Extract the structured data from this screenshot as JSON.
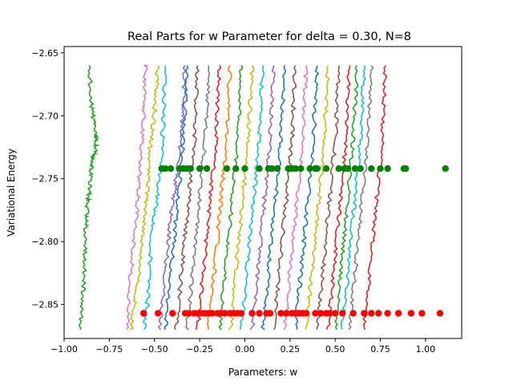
{
  "chart_data": {
    "type": "line",
    "title": "Real Parts for w Parameter for delta = 0.30, N=8",
    "xlabel": "Parameters: w",
    "ylabel": "Variational Energy",
    "xlim": [
      -1.0,
      1.2
    ],
    "ylim": [
      -2.877,
      -2.645
    ],
    "xticks": [
      -1.0,
      -0.75,
      -0.5,
      -0.25,
      0.0,
      0.25,
      0.5,
      0.75,
      1.0
    ],
    "xtick_labels": [
      "−1.00",
      "−0.75",
      "−0.50",
      "−0.25",
      "0.00",
      "0.25",
      "0.50",
      "0.75",
      "1.00"
    ],
    "yticks": [
      -2.65,
      -2.7,
      -2.75,
      -2.8,
      -2.85
    ],
    "ytick_labels": [
      "−2.65",
      "−2.70",
      "−2.75",
      "−2.80",
      "−2.85"
    ],
    "grid": false,
    "legend": "none",
    "palette": [
      "#1f77b4",
      "#ff7f0e",
      "#2ca02c",
      "#d62728",
      "#9467bd",
      "#8c564b",
      "#e377c2",
      "#7f7f7f",
      "#bcbd22",
      "#17becf"
    ],
    "lines": [
      {
        "color": "#2ca02c",
        "x": [
          -0.91,
          -0.9,
          -0.89,
          -0.885,
          -0.88,
          -0.875,
          -0.87,
          -0.86,
          -0.85,
          -0.84,
          -0.83,
          -0.82,
          -0.83,
          -0.84,
          -0.85,
          -0.86
        ],
        "y": [
          -2.87,
          -2.85,
          -2.83,
          -2.81,
          -2.79,
          -2.78,
          -2.77,
          -2.76,
          -2.745,
          -2.735,
          -2.73,
          -2.72,
          -2.715,
          -2.7,
          -2.69,
          -2.66
        ]
      },
      {
        "color": "#e377c2",
        "x": [
          -0.65,
          -0.64,
          -0.62,
          -0.6,
          -0.59,
          -0.58,
          -0.57,
          -0.56,
          -0.55,
          -0.55,
          -0.54
        ],
        "y": [
          -2.87,
          -2.84,
          -2.81,
          -2.78,
          -2.76,
          -2.74,
          -2.72,
          -2.7,
          -2.68,
          -2.66,
          -2.66
        ]
      },
      {
        "color": "#bcbd22",
        "x": [
          -0.63,
          -0.61,
          -0.59,
          -0.57,
          -0.55,
          -0.54,
          -0.53,
          -0.52,
          -0.5,
          -0.49,
          -0.48
        ],
        "y": [
          -2.87,
          -2.85,
          -2.83,
          -2.8,
          -2.78,
          -2.76,
          -2.74,
          -2.72,
          -2.7,
          -2.68,
          -2.66
        ]
      },
      {
        "color": "#17becf",
        "x": [
          -0.56,
          -0.54,
          -0.53,
          -0.52,
          -0.5,
          -0.48,
          -0.46,
          -0.45,
          -0.44
        ],
        "y": [
          -2.87,
          -2.85,
          -2.83,
          -2.8,
          -2.78,
          -2.76,
          -2.73,
          -2.7,
          -2.66
        ]
      },
      {
        "color": "#9467bd",
        "x": [
          -0.47,
          -0.45,
          -0.43,
          -0.41,
          -0.39,
          -0.37,
          -0.35,
          -0.34,
          -0.33
        ],
        "y": [
          -2.87,
          -2.84,
          -2.81,
          -2.78,
          -2.76,
          -2.74,
          -2.71,
          -2.69,
          -2.66
        ]
      },
      {
        "color": "#1f77b4",
        "x": [
          -0.44,
          -0.42,
          -0.4,
          -0.38,
          -0.36,
          -0.34,
          -0.33,
          -0.32
        ],
        "y": [
          -2.87,
          -2.84,
          -2.81,
          -2.78,
          -2.75,
          -2.72,
          -2.69,
          -2.66
        ]
      },
      {
        "color": "#8c564b",
        "x": [
          -0.38,
          -0.36,
          -0.34,
          -0.32,
          -0.3,
          -0.28,
          -0.27,
          -0.26
        ],
        "y": [
          -2.87,
          -2.84,
          -2.81,
          -2.78,
          -2.75,
          -2.72,
          -2.69,
          -2.66
        ]
      },
      {
        "color": "#7f7f7f",
        "x": [
          -0.32,
          -0.3,
          -0.28,
          -0.26,
          -0.24,
          -0.22,
          -0.21,
          -0.2
        ],
        "y": [
          -2.87,
          -2.84,
          -2.81,
          -2.78,
          -2.75,
          -2.72,
          -2.69,
          -2.66
        ]
      },
      {
        "color": "#d62728",
        "x": [
          -0.26,
          -0.24,
          -0.22,
          -0.2,
          -0.18,
          -0.16,
          -0.15,
          -0.14
        ],
        "y": [
          -2.87,
          -2.84,
          -2.81,
          -2.78,
          -2.75,
          -2.72,
          -2.69,
          -2.66
        ]
      },
      {
        "color": "#ff7f0e",
        "x": [
          -0.2,
          -0.18,
          -0.16,
          -0.14,
          -0.12,
          -0.1,
          -0.09,
          -0.08
        ],
        "y": [
          -2.87,
          -2.84,
          -2.81,
          -2.78,
          -2.75,
          -2.72,
          -2.69,
          -2.66
        ]
      },
      {
        "color": "#2ca02c",
        "x": [
          -0.14,
          -0.12,
          -0.1,
          -0.08,
          -0.06,
          -0.04,
          -0.03,
          -0.02
        ],
        "y": [
          -2.87,
          -2.84,
          -2.81,
          -2.78,
          -2.75,
          -2.72,
          -2.69,
          -2.66
        ]
      },
      {
        "color": "#bcbd22",
        "x": [
          -0.08,
          -0.06,
          -0.04,
          -0.02,
          0.0,
          0.02,
          0.03,
          0.04
        ],
        "y": [
          -2.87,
          -2.84,
          -2.81,
          -2.78,
          -2.75,
          -2.72,
          -2.69,
          -2.66
        ]
      },
      {
        "color": "#17becf",
        "x": [
          -0.02,
          0.0,
          0.02,
          0.04,
          0.06,
          0.08,
          0.09,
          0.1
        ],
        "y": [
          -2.87,
          -2.84,
          -2.81,
          -2.78,
          -2.75,
          -2.72,
          -2.69,
          -2.66
        ]
      },
      {
        "color": "#9467bd",
        "x": [
          0.04,
          0.06,
          0.08,
          0.1,
          0.12,
          0.14,
          0.15,
          0.16
        ],
        "y": [
          -2.87,
          -2.84,
          -2.81,
          -2.78,
          -2.75,
          -2.72,
          -2.69,
          -2.66
        ]
      },
      {
        "color": "#1f77b4",
        "x": [
          0.1,
          0.12,
          0.14,
          0.16,
          0.18,
          0.2,
          0.21,
          0.22
        ],
        "y": [
          -2.87,
          -2.84,
          -2.81,
          -2.78,
          -2.75,
          -2.72,
          -2.69,
          -2.66
        ]
      },
      {
        "color": "#8c564b",
        "x": [
          0.16,
          0.18,
          0.2,
          0.22,
          0.24,
          0.26,
          0.27,
          0.28
        ],
        "y": [
          -2.87,
          -2.84,
          -2.81,
          -2.78,
          -2.75,
          -2.72,
          -2.69,
          -2.66
        ]
      },
      {
        "color": "#e377c2",
        "x": [
          0.22,
          0.24,
          0.26,
          0.28,
          0.3,
          0.32,
          0.33,
          0.34
        ],
        "y": [
          -2.87,
          -2.84,
          -2.81,
          -2.78,
          -2.75,
          -2.72,
          -2.69,
          -2.66
        ]
      },
      {
        "color": "#1f77b4",
        "x": [
          0.28,
          0.3,
          0.32,
          0.34,
          0.36,
          0.38,
          0.39,
          0.4
        ],
        "y": [
          -2.87,
          -2.84,
          -2.81,
          -2.78,
          -2.75,
          -2.72,
          -2.69,
          -2.66
        ]
      },
      {
        "color": "#bcbd22",
        "x": [
          0.34,
          0.36,
          0.38,
          0.4,
          0.42,
          0.44,
          0.45,
          0.46
        ],
        "y": [
          -2.87,
          -2.84,
          -2.81,
          -2.78,
          -2.75,
          -2.72,
          -2.69,
          -2.66
        ]
      },
      {
        "color": "#8c564b",
        "x": [
          0.4,
          0.42,
          0.44,
          0.46,
          0.48,
          0.5,
          0.51,
          0.52
        ],
        "y": [
          -2.87,
          -2.84,
          -2.81,
          -2.78,
          -2.75,
          -2.72,
          -2.69,
          -2.66
        ]
      },
      {
        "color": "#d62728",
        "x": [
          0.46,
          0.48,
          0.5,
          0.52,
          0.54,
          0.56,
          0.57,
          0.58
        ],
        "y": [
          -2.87,
          -2.84,
          -2.81,
          -2.78,
          -2.75,
          -2.72,
          -2.69,
          -2.66
        ]
      },
      {
        "color": "#2ca02c",
        "x": [
          0.5,
          0.52,
          0.54,
          0.56,
          0.58,
          0.6,
          0.61,
          0.62
        ],
        "y": [
          -2.87,
          -2.84,
          -2.81,
          -2.78,
          -2.75,
          -2.72,
          -2.69,
          -2.66
        ]
      },
      {
        "color": "#17becf",
        "x": [
          0.54,
          0.56,
          0.58,
          0.6,
          0.62,
          0.64,
          0.65,
          0.66
        ],
        "y": [
          -2.87,
          -2.84,
          -2.81,
          -2.78,
          -2.75,
          -2.72,
          -2.69,
          -2.66
        ]
      },
      {
        "color": "#7f7f7f",
        "x": [
          0.58,
          0.6,
          0.62,
          0.64,
          0.66,
          0.68,
          0.69,
          0.7
        ],
        "y": [
          -2.87,
          -2.84,
          -2.81,
          -2.78,
          -2.75,
          -2.72,
          -2.69,
          -2.66
        ]
      },
      {
        "color": "#d62728",
        "x": [
          0.66,
          0.68,
          0.7,
          0.72,
          0.74,
          0.76,
          0.77,
          0.78
        ],
        "y": [
          -2.87,
          -2.84,
          -2.81,
          -2.78,
          -2.75,
          -2.72,
          -2.69,
          -2.66
        ]
      }
    ],
    "scatter": [
      {
        "color": "#008000",
        "y": -2.742,
        "x": [
          -0.46,
          -0.44,
          -0.41,
          -0.36,
          -0.34,
          -0.32,
          -0.3,
          -0.25,
          -0.21,
          -0.1,
          -0.05,
          0.0,
          0.08,
          0.13,
          0.15,
          0.18,
          0.24,
          0.26,
          0.28,
          0.31,
          0.36,
          0.39,
          0.4,
          0.45,
          0.52,
          0.55,
          0.57,
          0.61,
          0.64,
          0.7,
          0.75,
          0.79,
          0.88,
          0.89,
          1.11
        ]
      },
      {
        "color": "#ff0000",
        "y": -2.857,
        "x": [
          -0.56,
          -0.48,
          -0.4,
          -0.33,
          -0.31,
          -0.28,
          -0.26,
          -0.24,
          -0.22,
          -0.2,
          -0.18,
          -0.15,
          -0.13,
          -0.11,
          -0.08,
          -0.06,
          -0.04,
          -0.02,
          0.04,
          0.08,
          0.12,
          0.14,
          0.2,
          0.23,
          0.26,
          0.28,
          0.3,
          0.32,
          0.34,
          0.39,
          0.42,
          0.45,
          0.47,
          0.5,
          0.54,
          0.6,
          0.66,
          0.7,
          0.74,
          0.79,
          0.85,
          0.92,
          0.98,
          1.08
        ]
      }
    ]
  }
}
